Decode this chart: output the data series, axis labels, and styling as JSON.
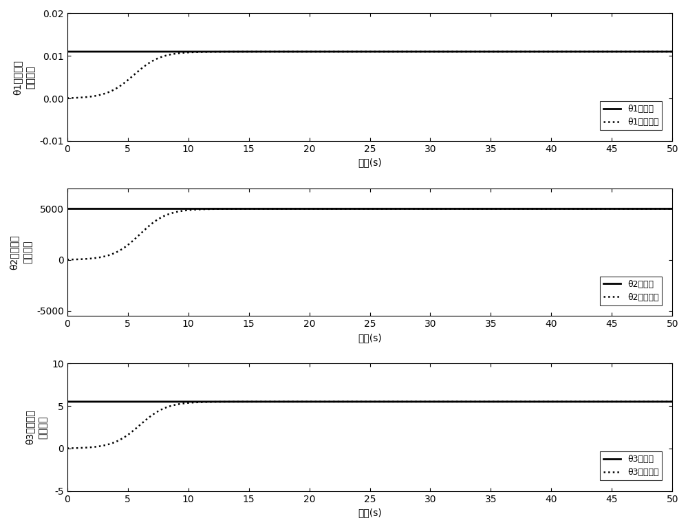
{
  "theta1_true": 0.011,
  "theta2_true": 5000.0,
  "theta3_true": 5.5,
  "t_end": 50,
  "subplot1": {
    "ylim": [
      -0.01,
      0.02
    ],
    "yticks": [
      -0.01,
      0,
      0.01,
      0.02
    ],
    "ylabel": "θ1的真値及\n其估计値",
    "legend1": "θ1的真値",
    "legend2": "θ1的估计値",
    "xlabel": "时间(s)"
  },
  "subplot2": {
    "ylim": [
      -5500,
      7000
    ],
    "yticks": [
      -5000,
      0,
      5000
    ],
    "ylabel": "θ2的真値及\n其估计値",
    "legend1": "θ2的真値",
    "legend2": "θ2的估计値",
    "xlabel": "时间(s)"
  },
  "subplot3": {
    "ylim": [
      -5,
      10
    ],
    "yticks": [
      -5,
      0,
      5,
      10
    ],
    "ylabel": "θ3的真値及\n其估计値",
    "legend1": "θ3的真値",
    "legend2": "θ3的估计値",
    "xlabel": "时间(s)"
  },
  "line_color": "#000000",
  "bg_color": "#ffffff",
  "xticks": [
    0,
    5,
    10,
    15,
    20,
    25,
    30,
    35,
    40,
    45,
    50
  ]
}
